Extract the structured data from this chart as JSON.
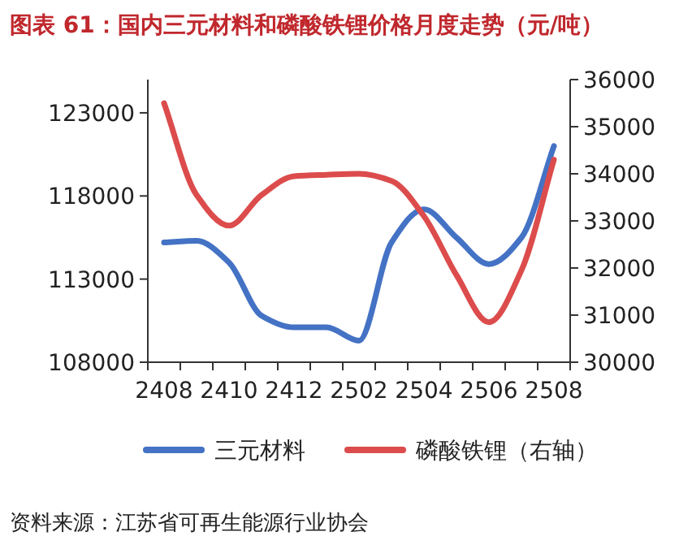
{
  "chart_data": {
    "type": "line",
    "title": "图表 61：国内三元材料和磷酸铁锂价格月度走势（元/吨）",
    "categories": [
      "2408",
      null,
      "2410",
      null,
      "2412",
      null,
      "2502",
      null,
      "2504",
      null,
      "2506",
      null,
      "2508"
    ],
    "series": [
      {
        "name": "三元材料",
        "color": "#4472c4",
        "values": [
          115200,
          115300,
          114000,
          110800,
          110100,
          110100,
          109300,
          115200,
          117200,
          115500,
          113900,
          115500,
          121000
        ]
      },
      {
        "name": "磷酸铁锂（右轴）",
        "color": "#dc4c4c",
        "axis": "y2",
        "values": [
          35500,
          33550,
          32900,
          33550,
          33950,
          33980,
          34000,
          33850,
          33100,
          31850,
          30850,
          31950,
          34300
        ]
      }
    ],
    "ylim": [
      108000,
      125000
    ],
    "yticks": [
      108000,
      113000,
      118000,
      123000
    ],
    "y2lim": [
      30000,
      36000
    ],
    "y2ticks": [
      30000,
      31000,
      32000,
      33000,
      34000,
      35000,
      36000
    ],
    "legend": "bottom",
    "annotations": [
      "资料来源：江苏省可再生能源行业协会"
    ]
  }
}
